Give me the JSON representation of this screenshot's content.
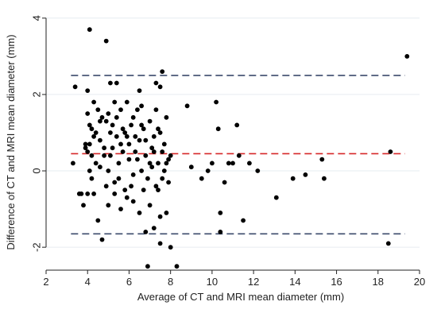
{
  "chart_data": {
    "type": "scatter",
    "title": "",
    "xlabel": "Average of CT and MRI mean diameter (mm)",
    "ylabel": "Difference of CT and MRI mean diameter (mm)",
    "xlim": [
      2,
      20
    ],
    "ylim": [
      -2.6,
      4.1
    ],
    "xticks": [
      2,
      4,
      6,
      8,
      10,
      12,
      14,
      16,
      18,
      20
    ],
    "yticks": [
      -2,
      0,
      2,
      4
    ],
    "grid": "horizontal",
    "colors": {
      "points": "#000000",
      "mean_line": "#d62728",
      "limit_lines": "#3b4a6b",
      "gridlines": "#e6ecf0",
      "axes": "#222222"
    },
    "reference_lines": [
      {
        "y": 2.5,
        "style": "dashed",
        "color": "#3b4a6b"
      },
      {
        "y": 0.45,
        "style": "dashed",
        "color": "#d62728"
      },
      {
        "y": -1.65,
        "style": "dashed",
        "color": "#3b4a6b"
      }
    ],
    "points": [
      [
        4.1,
        3.7
      ],
      [
        4.9,
        3.4
      ],
      [
        19.4,
        3.0
      ],
      [
        7.6,
        2.6
      ],
      [
        18.6,
        0.5
      ],
      [
        18.5,
        -1.9
      ],
      [
        3.4,
        2.2
      ],
      [
        4.0,
        2.1
      ],
      [
        5.1,
        2.3
      ],
      [
        5.4,
        2.3
      ],
      [
        6.5,
        2.1
      ],
      [
        7.3,
        2.3
      ],
      [
        7.5,
        2.2
      ],
      [
        3.3,
        0.2
      ],
      [
        3.6,
        -0.6
      ],
      [
        3.8,
        -0.9
      ],
      [
        3.9,
        0.6
      ],
      [
        4.0,
        0.5
      ],
      [
        4.1,
        0.7
      ],
      [
        4.2,
        -0.2
      ],
      [
        4.0,
        1.5
      ],
      [
        4.1,
        1.2
      ],
      [
        4.2,
        1.1
      ],
      [
        4.3,
        0.9
      ],
      [
        4.4,
        0.2
      ],
      [
        4.5,
        1.6
      ],
      [
        4.6,
        0.8
      ],
      [
        4.7,
        1.4
      ],
      [
        4.8,
        0.4
      ],
      [
        4.9,
        1.3
      ],
      [
        5.0,
        0.0
      ],
      [
        5.1,
        1.0
      ],
      [
        5.2,
        0.6
      ],
      [
        5.3,
        -0.3
      ],
      [
        5.4,
        1.4
      ],
      [
        5.5,
        0.2
      ],
      [
        5.6,
        0.7
      ],
      [
        5.7,
        1.1
      ],
      [
        5.8,
        -0.5
      ],
      [
        5.9,
        0.9
      ],
      [
        6.0,
        0.3
      ],
      [
        6.1,
        1.2
      ],
      [
        6.2,
        -0.1
      ],
      [
        6.3,
        0.5
      ],
      [
        6.4,
        1.6
      ],
      [
        6.5,
        0.8
      ],
      [
        6.6,
        0.0
      ],
      [
        6.7,
        1.1
      ],
      [
        6.8,
        0.4
      ],
      [
        6.9,
        -0.2
      ],
      [
        7.0,
        1.3
      ],
      [
        7.1,
        0.6
      ],
      [
        7.2,
        0.9
      ],
      [
        7.3,
        -0.4
      ],
      [
        7.4,
        0.2
      ],
      [
        7.5,
        1.0
      ],
      [
        7.6,
        0.5
      ],
      [
        7.7,
        0.0
      ],
      [
        7.8,
        1.4
      ],
      [
        7.9,
        0.3
      ],
      [
        8.0,
        0.4
      ],
      [
        4.3,
        -0.6
      ],
      [
        4.5,
        -1.3
      ],
      [
        4.7,
        -1.8
      ],
      [
        5.0,
        -0.9
      ],
      [
        5.3,
        -0.6
      ],
      [
        5.6,
        -1.0
      ],
      [
        5.9,
        -0.7
      ],
      [
        6.2,
        -0.8
      ],
      [
        6.5,
        -1.1
      ],
      [
        6.8,
        -1.6
      ],
      [
        7.0,
        -0.9
      ],
      [
        7.2,
        -1.5
      ],
      [
        7.5,
        -1.2
      ],
      [
        7.8,
        -1.1
      ],
      [
        6.9,
        -2.5
      ],
      [
        7.5,
        -1.9
      ],
      [
        8.0,
        -2.0
      ],
      [
        8.3,
        -2.5
      ],
      [
        7.4,
        -0.5
      ],
      [
        8.8,
        1.7
      ],
      [
        9.0,
        0.1
      ],
      [
        9.5,
        -0.2
      ],
      [
        9.8,
        0.0
      ],
      [
        10.0,
        0.2
      ],
      [
        10.2,
        1.8
      ],
      [
        10.3,
        1.1
      ],
      [
        10.4,
        -1.1
      ],
      [
        10.4,
        -1.6
      ],
      [
        10.6,
        -0.3
      ],
      [
        10.8,
        0.2
      ],
      [
        11.0,
        0.2
      ],
      [
        11.2,
        1.2
      ],
      [
        11.3,
        0.4
      ],
      [
        11.5,
        -1.3
      ],
      [
        11.8,
        0.2
      ],
      [
        12.2,
        0.0
      ],
      [
        13.1,
        -0.7
      ],
      [
        13.9,
        -0.2
      ],
      [
        14.5,
        -0.1
      ],
      [
        15.3,
        0.3
      ],
      [
        15.4,
        -0.2
      ],
      [
        3.9,
        0.7
      ],
      [
        4.2,
        0.4
      ],
      [
        4.4,
        1.0
      ],
      [
        4.6,
        1.3
      ],
      [
        4.8,
        0.6
      ],
      [
        5.0,
        1.5
      ],
      [
        5.2,
        1.2
      ],
      [
        5.4,
        0.9
      ],
      [
        5.6,
        1.6
      ],
      [
        5.8,
        1.0
      ],
      [
        6.0,
        0.7
      ],
      [
        6.2,
        1.4
      ],
      [
        6.4,
        0.3
      ],
      [
        6.6,
        1.2
      ],
      [
        6.8,
        0.8
      ],
      [
        7.0,
        0.2
      ],
      [
        7.2,
        0.5
      ],
      [
        7.4,
        1.1
      ],
      [
        7.6,
        -0.2
      ],
      [
        7.8,
        0.2
      ],
      [
        4.6,
        0.1
      ],
      [
        4.9,
        -0.4
      ],
      [
        5.1,
        0.4
      ],
      [
        5.5,
        -0.2
      ],
      [
        5.7,
        0.5
      ],
      [
        6.1,
        -0.4
      ],
      [
        6.3,
        0.9
      ],
      [
        6.7,
        -0.5
      ],
      [
        7.1,
        0.1
      ],
      [
        7.3,
        1.6
      ],
      [
        7.7,
        0.7
      ],
      [
        7.9,
        -0.3
      ],
      [
        5.3,
        1.8
      ],
      [
        5.9,
        1.8
      ],
      [
        6.6,
        1.7
      ],
      [
        4.1,
        0.0
      ],
      [
        4.3,
        1.8
      ],
      [
        4.0,
        -0.6
      ],
      [
        3.7,
        -0.6
      ]
    ]
  }
}
